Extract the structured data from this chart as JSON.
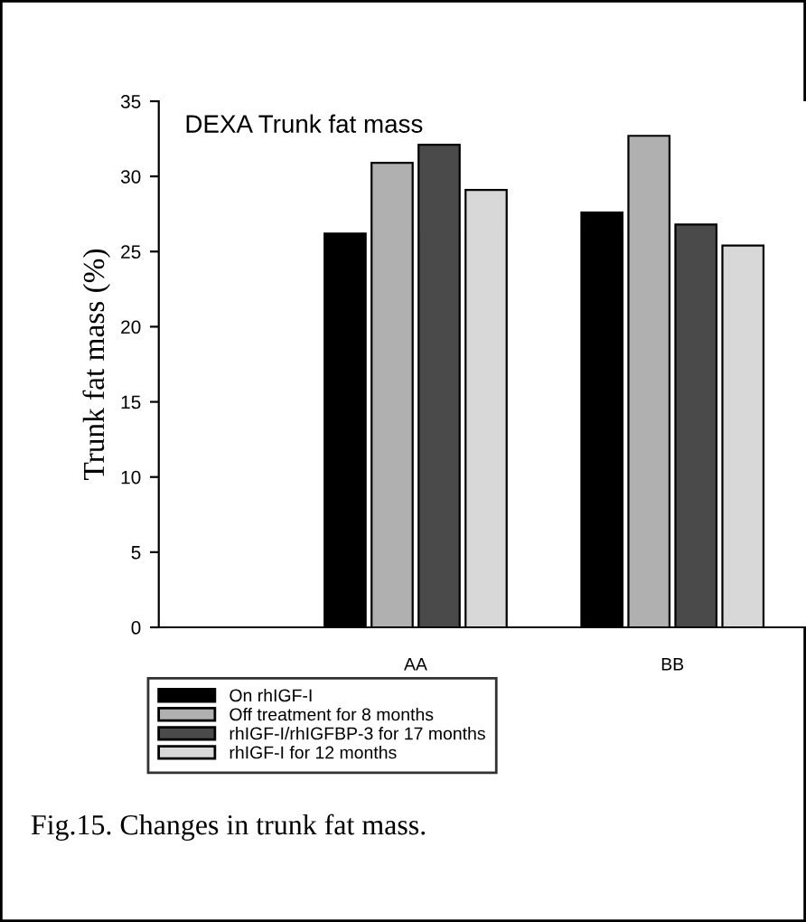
{
  "chart_data": {
    "type": "bar",
    "title": "DEXA Trunk fat mass",
    "ylabel": "Trunk fat mass (%)",
    "categories": [
      "AA",
      "BB"
    ],
    "series": [
      {
        "name": "On rhIGF-I",
        "color": "#000000",
        "values": [
          26.2,
          27.6
        ]
      },
      {
        "name": "Off treatment for 8 months",
        "color": "#b0b0b0",
        "values": [
          30.9,
          32.7
        ]
      },
      {
        "name": "rhIGF-I/rhIGFBP-3 for 17 months",
        "color": "#4a4a4a",
        "values": [
          32.1,
          26.8
        ]
      },
      {
        "name": "rhIGF-I for 12 months",
        "color": "#d8d8d8",
        "values": [
          29.1,
          25.4
        ]
      }
    ],
    "ylim": [
      0,
      35
    ],
    "yticks": [
      0,
      5,
      10,
      15,
      20,
      25,
      30,
      35
    ],
    "grid": false,
    "legend": "bottom",
    "annotations": [
      "Fig.15. Changes in trunk fat mass."
    ]
  }
}
